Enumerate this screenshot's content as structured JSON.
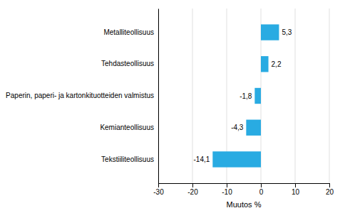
{
  "chart_data": {
    "type": "bar",
    "orientation": "horizontal",
    "categories": [
      "Tekstiiliteollisuus",
      "Kemianteollisuus",
      "Paperin, paperi- ja kartonkituotteiden valmistus",
      "Tehdasteollisuus",
      "Metalliteollisuus"
    ],
    "values": [
      -14.1,
      -4.3,
      -1.8,
      2.2,
      5.3
    ],
    "value_labels": [
      "-14,1",
      "-4,3",
      "-1,8",
      "2,2",
      "5,3"
    ],
    "data_labels": true,
    "color": "#29abe2",
    "xlabel": "Muutos %",
    "xlim": [
      -30,
      20
    ],
    "xticks": [
      -30,
      -20,
      -10,
      0,
      10,
      20
    ],
    "grid": true
  }
}
